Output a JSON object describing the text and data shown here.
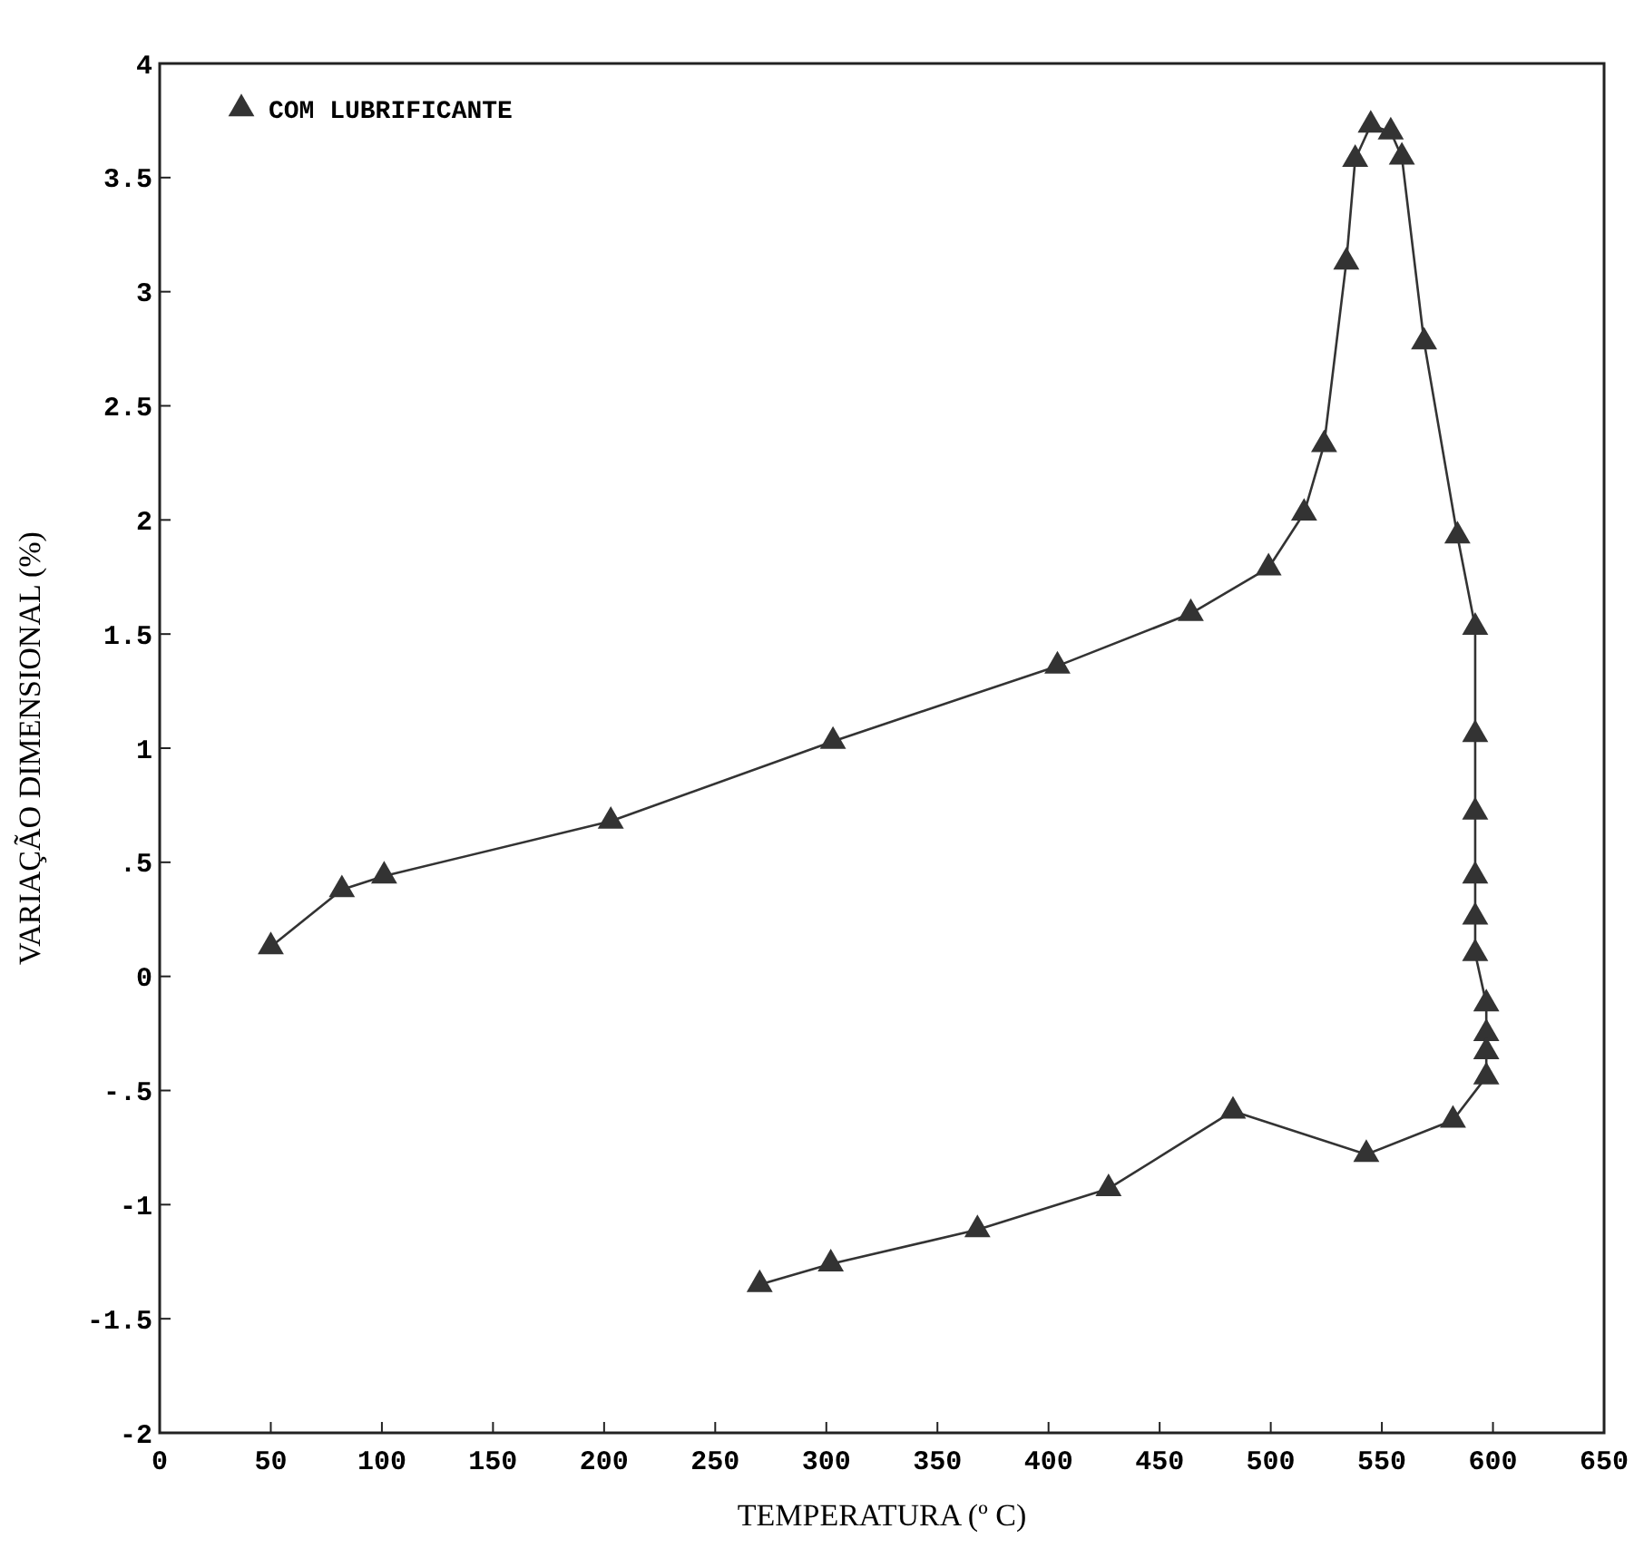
{
  "chart_data": {
    "type": "line",
    "xlabel": "TEMPERATURA (º C)",
    "ylabel": "VARIAÇÃO DIMENSIONAL (%)",
    "xlim": [
      0,
      650
    ],
    "xticks": [
      0,
      50,
      100,
      150,
      200,
      250,
      300,
      350,
      400,
      450,
      500,
      550,
      600,
      650
    ],
    "ylim": [
      -2,
      4
    ],
    "yticks": [
      -2,
      {
        "value": -1.5,
        "label": "-1.5"
      },
      -1,
      {
        "value": -0.5,
        "label": "-.5"
      },
      0,
      {
        "value": 0.5,
        "label": ".5"
      },
      1,
      1.5,
      2,
      2.5,
      3,
      3.5,
      4
    ],
    "series": [
      {
        "name": "COM LUBRIFICANTE",
        "color": "#333333",
        "x": [
          50,
          82,
          101,
          203,
          303,
          404,
          464,
          499,
          515,
          524,
          534,
          538,
          545,
          554,
          559,
          569,
          584,
          592,
          592,
          592,
          592,
          592,
          592,
          597,
          597,
          597,
          597,
          582,
          543,
          483,
          427,
          368,
          302,
          270
        ],
        "values": [
          0.13,
          0.38,
          0.44,
          0.68,
          1.03,
          1.36,
          1.59,
          1.79,
          2.03,
          2.33,
          3.13,
          3.58,
          3.73,
          3.7,
          3.59,
          2.78,
          1.93,
          1.53,
          1.06,
          0.72,
          0.44,
          0.26,
          0.1,
          -0.12,
          -0.25,
          -0.33,
          -0.44,
          -0.63,
          -0.78,
          -0.59,
          -0.93,
          -1.11,
          -1.26,
          -1.35
        ]
      }
    ],
    "marker": "triangle",
    "line_style": "solid",
    "legend": "top left",
    "grid": false
  }
}
